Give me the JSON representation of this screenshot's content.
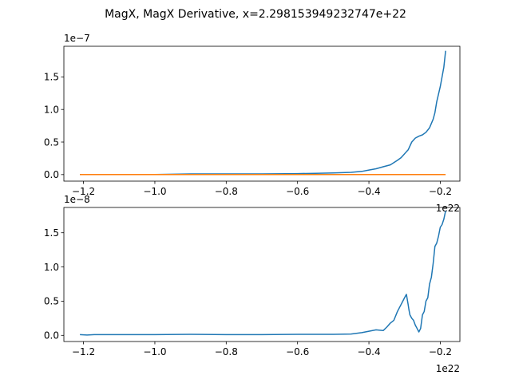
{
  "figure": {
    "suptitle": "MagX, MagX Derivative, x=2.298153949232747e+22"
  },
  "chart_data": [
    {
      "type": "line",
      "title": "",
      "xlabel": "",
      "ylabel": "",
      "x_offset_text": "1e22",
      "y_offset_text": "1e−7",
      "xlim": [
        -1.255,
        -0.145
      ],
      "ylim": [
        -0.1,
        1.97
      ],
      "x_ticks": [
        -1.2,
        -1.0,
        -0.8,
        -0.6,
        -0.4,
        -0.2
      ],
      "x_tick_labels": [
        "−1.2",
        "−1.0",
        "−0.8",
        "−0.6",
        "−0.4",
        "−0.2"
      ],
      "y_ticks": [
        0.0,
        0.5,
        1.0,
        1.5
      ],
      "y_tick_labels": [
        "0.0",
        "0.5",
        "1.0",
        "1.5"
      ],
      "grid": false,
      "legend": "none",
      "series": [
        {
          "color": "#1f77b4",
          "x": [
            -1.21,
            -1.1,
            -1.0,
            -0.9,
            -0.8,
            -0.7,
            -0.6,
            -0.55,
            -0.5,
            -0.45,
            -0.42,
            -0.4,
            -0.38,
            -0.36,
            -0.34,
            -0.32,
            -0.31,
            -0.3,
            -0.29,
            -0.28,
            -0.27,
            -0.26,
            -0.25,
            -0.24,
            -0.23,
            -0.22,
            -0.215,
            -0.21,
            -0.2,
            -0.19,
            -0.185
          ],
          "y": [
            0.0,
            0.0,
            0.0,
            0.01,
            0.01,
            0.01,
            0.015,
            0.02,
            0.025,
            0.035,
            0.05,
            0.07,
            0.09,
            0.12,
            0.15,
            0.22,
            0.26,
            0.32,
            0.38,
            0.5,
            0.56,
            0.59,
            0.61,
            0.65,
            0.72,
            0.85,
            0.95,
            1.12,
            1.35,
            1.65,
            1.9
          ]
        },
        {
          "color": "#ff7f0e",
          "x": [
            -1.21,
            -0.185
          ],
          "y": [
            0.0,
            0.0
          ]
        }
      ]
    },
    {
      "type": "line",
      "title": "",
      "xlabel": "",
      "ylabel": "",
      "x_offset_text": "1e22",
      "y_offset_text": "1e−8",
      "xlim": [
        -1.255,
        -0.145
      ],
      "ylim": [
        -0.09,
        1.87
      ],
      "x_ticks": [
        -1.2,
        -1.0,
        -0.8,
        -0.6,
        -0.4,
        -0.2
      ],
      "x_tick_labels": [
        "−1.2",
        "−1.0",
        "−0.8",
        "−0.6",
        "−0.4",
        "−0.2"
      ],
      "y_ticks": [
        0.0,
        0.5,
        1.0,
        1.5
      ],
      "y_tick_labels": [
        "0.0",
        "0.5",
        "1.0",
        "1.5"
      ],
      "grid": false,
      "legend": "none",
      "series": [
        {
          "color": "#1f77b4",
          "x": [
            -1.21,
            -1.19,
            -1.17,
            -1.1,
            -1.0,
            -0.9,
            -0.8,
            -0.7,
            -0.6,
            -0.5,
            -0.45,
            -0.42,
            -0.4,
            -0.38,
            -0.36,
            -0.35,
            -0.34,
            -0.33,
            -0.32,
            -0.31,
            -0.3,
            -0.295,
            -0.29,
            -0.288,
            -0.285,
            -0.28,
            -0.275,
            -0.27,
            -0.265,
            -0.26,
            -0.255,
            -0.25,
            -0.245,
            -0.24,
            -0.235,
            -0.23,
            -0.225,
            -0.22,
            -0.215,
            -0.21,
            -0.205,
            -0.2,
            -0.195,
            -0.19,
            -0.185
          ],
          "y": [
            0.01,
            0.005,
            0.01,
            0.01,
            0.01,
            0.015,
            0.01,
            0.01,
            0.015,
            0.015,
            0.02,
            0.04,
            0.06,
            0.08,
            0.07,
            0.12,
            0.18,
            0.22,
            0.35,
            0.45,
            0.55,
            0.6,
            0.45,
            0.38,
            0.3,
            0.25,
            0.22,
            0.15,
            0.1,
            0.05,
            0.1,
            0.3,
            0.35,
            0.5,
            0.55,
            0.75,
            0.85,
            1.05,
            1.3,
            1.35,
            1.45,
            1.58,
            1.62,
            1.7,
            1.82
          ]
        }
      ]
    }
  ]
}
